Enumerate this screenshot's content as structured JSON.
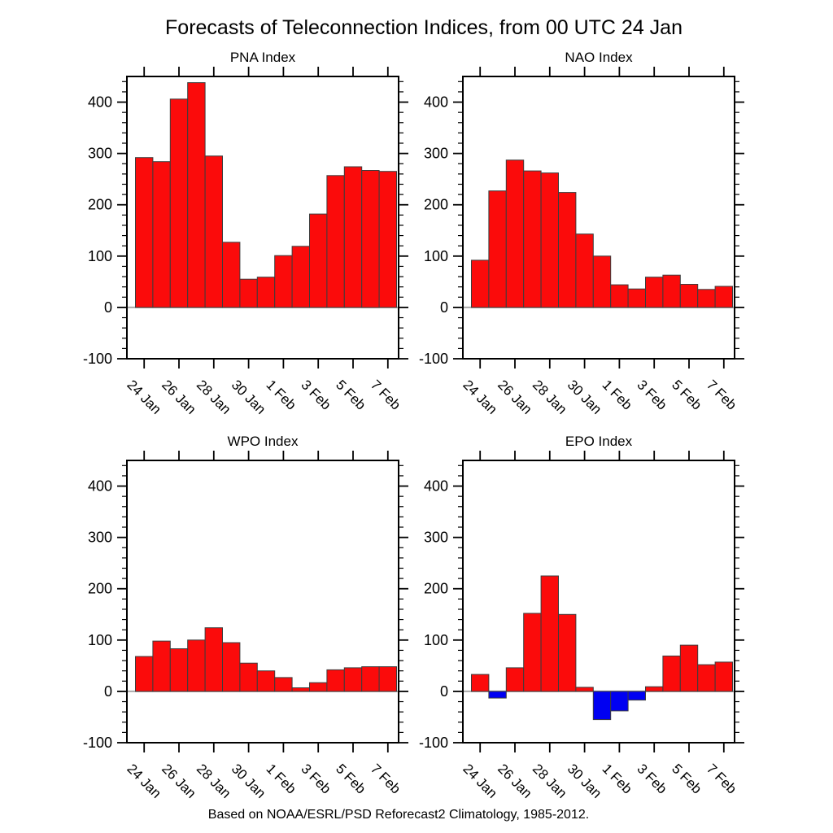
{
  "title": "Forecasts of Teleconnection Indices, from 00 UTC 24 Jan",
  "footer": "Based on NOAA/ESRL/PSD Reforecast2 Climatology, 1985-2012.",
  "colors": {
    "positive_bar": "#fb0b0b",
    "negative_bar": "#0000f2",
    "bar_outline": "#3c3c3c",
    "zero_line": "#aaaaaa",
    "axis": "#000000"
  },
  "chart_data": [
    {
      "type": "bar",
      "title": "PNA Index",
      "x_tick_labels": [
        "24 Jan",
        "26 Jan",
        "28 Jan",
        "30 Jan",
        "1 Feb",
        "3 Feb",
        "5 Feb",
        "7 Feb"
      ],
      "values": [
        292,
        284,
        406,
        438,
        295,
        127,
        55,
        59,
        101,
        119,
        182,
        257,
        274,
        267,
        265
      ],
      "ylim": [
        -100,
        450
      ],
      "yticks": [
        -100,
        0,
        100,
        200,
        300,
        400
      ],
      "y_minor_step": 20
    },
    {
      "type": "bar",
      "title": "NAO Index",
      "x_tick_labels": [
        "24 Jan",
        "26 Jan",
        "28 Jan",
        "30 Jan",
        "1 Feb",
        "3 Feb",
        "5 Feb",
        "7 Feb"
      ],
      "values": [
        92,
        227,
        287,
        266,
        262,
        224,
        143,
        100,
        44,
        36,
        59,
        63,
        45,
        35,
        41
      ],
      "ylim": [
        -100,
        450
      ],
      "yticks": [
        -100,
        0,
        100,
        200,
        300,
        400
      ],
      "y_minor_step": 20
    },
    {
      "type": "bar",
      "title": "WPO Index",
      "x_tick_labels": [
        "24 Jan",
        "26 Jan",
        "28 Jan",
        "30 Jan",
        "1 Feb",
        "3 Feb",
        "5 Feb",
        "7 Feb"
      ],
      "values": [
        68,
        98,
        83,
        100,
        124,
        95,
        55,
        40,
        27,
        7,
        17,
        42,
        46,
        48,
        48
      ],
      "ylim": [
        -100,
        450
      ],
      "yticks": [
        -100,
        0,
        100,
        200,
        300,
        400
      ],
      "y_minor_step": 20
    },
    {
      "type": "bar",
      "title": "EPO Index",
      "x_tick_labels": [
        "24 Jan",
        "26 Jan",
        "28 Jan",
        "30 Jan",
        "1 Feb",
        "3 Feb",
        "5 Feb",
        "7 Feb"
      ],
      "values": [
        33,
        -13,
        46,
        152,
        225,
        150,
        8,
        -55,
        -38,
        -17,
        9,
        69,
        90,
        52,
        57
      ],
      "ylim": [
        -100,
        450
      ],
      "yticks": [
        -100,
        0,
        100,
        200,
        300,
        400
      ],
      "y_minor_step": 20
    }
  ]
}
